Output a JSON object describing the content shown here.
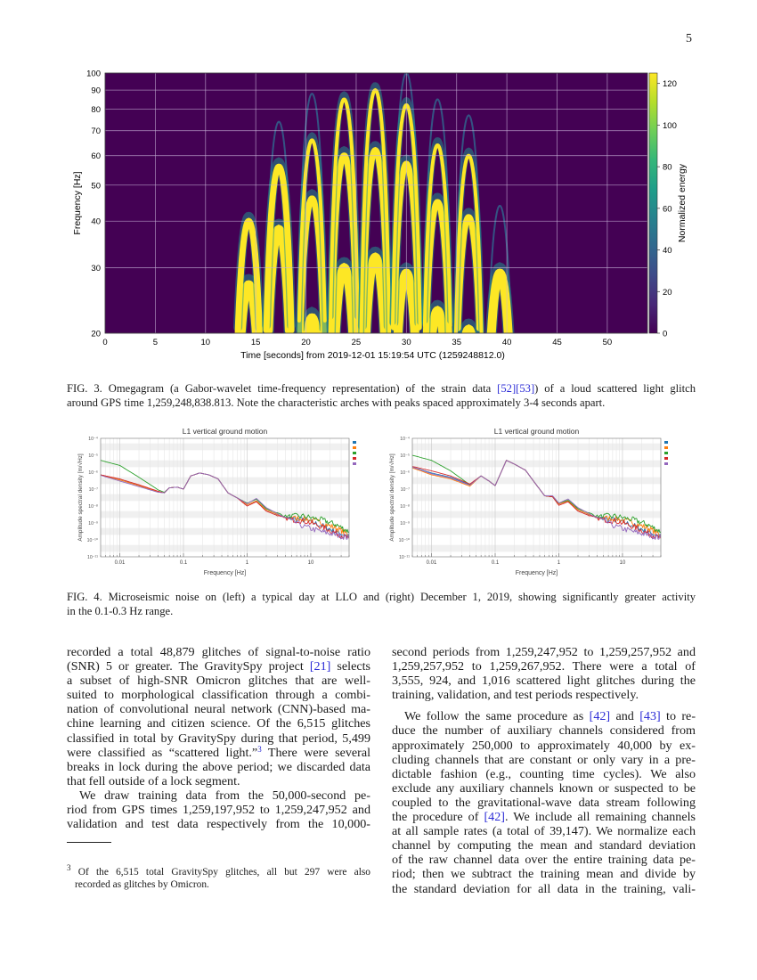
{
  "page": {
    "number": "5"
  },
  "fig3": {
    "caption": {
      "l1a": "FIG. 3. Omegagram (a Gabor-wavelet time-frequency representation) of the strain data ",
      "ref1": "[52]",
      "ref2": "[53]",
      "l1b": ") of a loud scattered light glitch",
      "l2": "around GPS time 1,259,248,838.813. Note the characteristic arches with peaks spaced approximately 3-4 seconds apart."
    }
  },
  "fig4": {
    "caption": {
      "l1": "FIG. 4. Microseismic noise on (left) a typical day at LLO and (right) December 1, 2019, showing significantly greater activity",
      "l2": "in the 0.1-0.3 Hz range."
    }
  },
  "chart_data": [
    {
      "type": "heatmap",
      "xlabel": "Time [seconds] from 2019-12-01 15:19:54 UTC (1259248812.0)",
      "ylabel": "Frequency [Hz]",
      "xlim": [
        0,
        54
      ],
      "ylim": [
        20,
        100
      ],
      "yscale": "log",
      "xticks": [
        0,
        5,
        10,
        15,
        20,
        25,
        30,
        35,
        40,
        45,
        50
      ],
      "yticks": [
        20,
        30,
        40,
        50,
        60,
        70,
        80,
        90,
        100
      ],
      "grid": true,
      "colorbar": {
        "label": "Normalized energy",
        "range": [
          0,
          125
        ],
        "ticks": [
          0,
          20,
          40,
          60,
          80,
          100,
          120
        ],
        "colormap": "viridis"
      },
      "background_color": "#440154",
      "peak_color": "#fde725",
      "faint_color": "#31688e",
      "arches": [
        {
          "t": 14.3,
          "peaks_hz": [
            27,
            40
          ],
          "faint_hz": []
        },
        {
          "t": 17.3,
          "peaks_hz": [
            38,
            56
          ],
          "faint_hz": [
            74
          ]
        },
        {
          "t": 20.6,
          "peaks_hz": [
            22,
            46,
            66
          ],
          "faint_hz": [
            88
          ]
        },
        {
          "t": 23.8,
          "peaks_hz": [
            30,
            60,
            85
          ],
          "faint_hz": []
        },
        {
          "t": 26.9,
          "peaks_hz": [
            32,
            62,
            90
          ],
          "faint_hz": []
        },
        {
          "t": 30.0,
          "peaks_hz": [
            29,
            57,
            82
          ],
          "faint_hz": [
            100
          ]
        },
        {
          "t": 33.1,
          "peaks_hz": [
            23,
            45,
            64
          ],
          "faint_hz": [
            85
          ]
        },
        {
          "t": 36.2,
          "peaks_hz": [
            20.5,
            41,
            60
          ],
          "faint_hz": [
            77
          ]
        },
        {
          "t": 39.3,
          "peaks_hz": [
            29
          ],
          "faint_hz": [
            44
          ]
        }
      ]
    },
    {
      "type": "line",
      "title": "L1 vertical ground motion",
      "xlabel": "Frequency [Hz]",
      "ylabel": "Amplitude spectral density [m/√Hz]",
      "xscale": "log",
      "yscale": "log",
      "xlim": [
        0.005,
        40
      ],
      "ylim": [
        1e-11,
        0.0001
      ],
      "xticks": [
        0.01,
        0.1,
        1,
        10
      ],
      "xtick_labels": [
        "0.01",
        "0.1",
        "1",
        "10"
      ],
      "yticks": [
        0.0001,
        1e-05,
        1e-06,
        1e-07,
        1e-08,
        1e-09,
        1e-10,
        1e-11
      ],
      "ytick_labels": [
        "10⁻⁴",
        "10⁻⁵",
        "10⁻⁶",
        "10⁻⁷",
        "10⁻⁸",
        "10⁻⁹",
        "10⁻¹⁰",
        "10⁻¹¹"
      ],
      "grid": true,
      "legend": "top-right",
      "x": [
        0.005,
        0.01,
        0.02,
        0.04,
        0.05,
        0.06,
        0.08,
        0.1,
        0.13,
        0.18,
        0.25,
        0.35,
        0.5,
        0.7,
        1,
        1.4,
        2,
        4,
        8,
        15,
        25,
        40
      ],
      "series": [
        {
          "color": "#1f77b4",
          "values": [
            7e-07,
            3.5e-07,
            1.6e-07,
            7e-08,
            6e-08,
            1.2e-07,
            1.3e-07,
            1e-07,
            6e-07,
            9e-07,
            7e-07,
            4e-07,
            6e-08,
            3e-08,
            1.2e-08,
            2e-08,
            6e-09,
            2e-09,
            1.5e-09,
            7e-10,
            3e-10,
            1.5e-10
          ]
        },
        {
          "color": "#ff7f0e",
          "values": [
            7e-07,
            3.5e-07,
            1.6e-07,
            7e-08,
            6e-08,
            1.2e-07,
            1.3e-07,
            1e-07,
            6e-07,
            9e-07,
            7e-07,
            4e-07,
            6e-08,
            3e-08,
            1.2e-08,
            2e-08,
            6e-09,
            2e-09,
            1.8e-09,
            1e-09,
            5e-10,
            2e-10
          ]
        },
        {
          "color": "#2ca02c",
          "values": [
            5e-06,
            2.5e-06,
            5e-07,
            9e-08,
            6.5e-08,
            1.2e-07,
            1.3e-07,
            1e-07,
            6e-07,
            9e-07,
            7e-07,
            4e-07,
            6e-08,
            3e-08,
            1.5e-08,
            2.5e-08,
            7e-09,
            2.5e-09,
            2.5e-09,
            1.5e-09,
            8e-10,
            3e-10
          ]
        },
        {
          "color": "#d62728",
          "values": [
            7e-07,
            4e-07,
            1.8e-07,
            7.5e-08,
            6e-08,
            1.2e-07,
            1.3e-07,
            1e-07,
            6e-07,
            9e-07,
            7e-07,
            4e-07,
            6e-08,
            3e-08,
            1e-08,
            1.8e-08,
            5e-09,
            1.8e-09,
            1.3e-09,
            6e-10,
            2.5e-10,
            1.2e-10
          ]
        },
        {
          "color": "#9467bd",
          "values": [
            6.5e-07,
            3e-07,
            1.4e-07,
            6.5e-08,
            6e-08,
            1.2e-07,
            1.3e-07,
            1e-07,
            6e-07,
            9e-07,
            7e-07,
            4e-07,
            6e-08,
            3e-08,
            1.4e-08,
            2.8e-08,
            8e-09,
            2e-09,
            6e-10,
            3e-10,
            2e-10,
            1.3e-10
          ]
        }
      ]
    },
    {
      "type": "line",
      "title": "L1 vertical ground motion",
      "xlabel": "Frequency [Hz]",
      "ylabel": "Amplitude spectral density [m/√Hz]",
      "xscale": "log",
      "yscale": "log",
      "xlim": [
        0.005,
        40
      ],
      "ylim": [
        1e-11,
        0.0001
      ],
      "xticks": [
        0.01,
        0.1,
        1,
        10
      ],
      "xtick_labels": [
        "0.01",
        "0.1",
        "1",
        "10"
      ],
      "yticks": [
        0.0001,
        1e-05,
        1e-06,
        1e-07,
        1e-08,
        1e-09,
        1e-10,
        1e-11
      ],
      "ytick_labels": [
        "10⁻⁴",
        "10⁻⁵",
        "10⁻⁶",
        "10⁻⁷",
        "10⁻⁸",
        "10⁻⁹",
        "10⁻¹⁰",
        "10⁻¹¹"
      ],
      "grid": true,
      "legend": "top-right",
      "x": [
        0.005,
        0.01,
        0.02,
        0.04,
        0.06,
        0.08,
        0.1,
        0.15,
        0.2,
        0.3,
        0.4,
        0.6,
        0.8,
        1,
        1.4,
        2,
        4,
        8,
        15,
        25,
        40
      ],
      "series": [
        {
          "color": "#1f77b4",
          "values": [
            2e-06,
            9e-07,
            5e-07,
            1.8e-07,
            6e-07,
            3e-07,
            1.6e-07,
            5e-06,
            3e-06,
            1.3e-06,
            3e-07,
            4e-08,
            3.5e-08,
            1.3e-08,
            2e-08,
            6e-09,
            2e-09,
            1.5e-09,
            7e-10,
            3e-10,
            1.5e-10
          ]
        },
        {
          "color": "#ff7f0e",
          "values": [
            1.8e-06,
            7e-07,
            4e-07,
            1.5e-07,
            6e-07,
            3e-07,
            1.6e-07,
            5e-06,
            3e-06,
            1.3e-06,
            3e-07,
            4e-08,
            3.5e-08,
            1.3e-08,
            2e-08,
            6e-09,
            2e-09,
            1.8e-09,
            1e-09,
            5e-10,
            2e-10
          ]
        },
        {
          "color": "#2ca02c",
          "values": [
            1e-05,
            5e-06,
            1.2e-06,
            1.8e-07,
            6e-07,
            3e-07,
            1.6e-07,
            5e-06,
            3e-06,
            1.3e-06,
            3e-07,
            4e-08,
            3.5e-08,
            1.5e-08,
            2.2e-08,
            7e-09,
            2.5e-09,
            2.5e-09,
            1.5e-09,
            8e-10,
            3e-10
          ]
        },
        {
          "color": "#d62728",
          "values": [
            2.2e-06,
            1.2e-06,
            6e-07,
            2e-07,
            6e-07,
            3e-07,
            1.6e-07,
            5e-06,
            3e-06,
            1.3e-06,
            3e-07,
            4e-08,
            3.5e-08,
            1.1e-08,
            1.8e-08,
            5e-09,
            1.8e-09,
            1.3e-09,
            6e-10,
            2.5e-10,
            1.2e-10
          ]
        },
        {
          "color": "#9467bd",
          "values": [
            2e-06,
            8e-07,
            4.5e-07,
            1.7e-07,
            6e-07,
            3e-07,
            1.6e-07,
            5e-06,
            3e-06,
            1.3e-06,
            3e-07,
            4e-08,
            4e-08,
            1.5e-08,
            2.6e-08,
            8e-09,
            2e-09,
            6e-10,
            3e-10,
            2e-10,
            1.3e-10
          ]
        }
      ]
    }
  ],
  "body": {
    "left": {
      "p1": [
        "recorded a total 48,879 glitches of signal-to-noise ratio",
        "(SNR) 5 or greater. The GravitySpy project ",
        " selects",
        "a subset of high-SNR Omicron glitches that are well-",
        "suited to morphological classification through a combi-",
        "nation of convolutional neural network (CNN)-based ma-",
        "chine learning and citizen science. Of the 6,515 glitches",
        "classified in total by GravitySpy during that period, 5,499",
        "were classified as “scattered light.”",
        " There were several",
        "breaks in lock during the above period; we discarded data",
        "that fell outside of a lock segment."
      ],
      "ref21": "[21]",
      "fnmark": "3",
      "p2": [
        "We draw training data from the 50,000-second pe-",
        "riod from GPS times 1,259,197,952 to 1,259,247,952 and",
        "validation and test data respectively from the 10,000-"
      ]
    },
    "right": {
      "p1": [
        "second periods from 1,259,247,952 to 1,259,257,952 and",
        "1,259,257,952 to 1,259,267,952. There were a total of",
        "3,555, 924, and 1,016 scattered light glitches during the",
        "training, validation, and test periods respectively."
      ],
      "p2": [
        "We follow the same procedure as ",
        " and ",
        " to re-",
        "duce the number of auxiliary channels considered from",
        "approximately 250,000 to approximately 40,000 by ex-",
        "cluding channels that are constant or only vary in a pre-",
        "dictable fashion (e.g., counting time cycles). We also",
        "exclude any auxiliary channels known or suspected to be",
        "coupled to the gravitational-wave data stream following",
        "the procedure of ",
        ". We include all remaining channels",
        "at all sample rates (a total of 39,147). We normalize each",
        "channel by computing the mean and standard deviation",
        "of the raw channel data over the entire training data pe-",
        "riod; then we subtract the training mean and divide by",
        "the standard deviation for all data in the training, vali-"
      ],
      "ref42": "[42]",
      "ref43": "[43]"
    }
  },
  "footnote": {
    "mark": "3",
    "l1": " Of the 6,515 total GravitySpy glitches, all but 297 were also",
    "l2": "recorded as glitches by Omicron."
  }
}
